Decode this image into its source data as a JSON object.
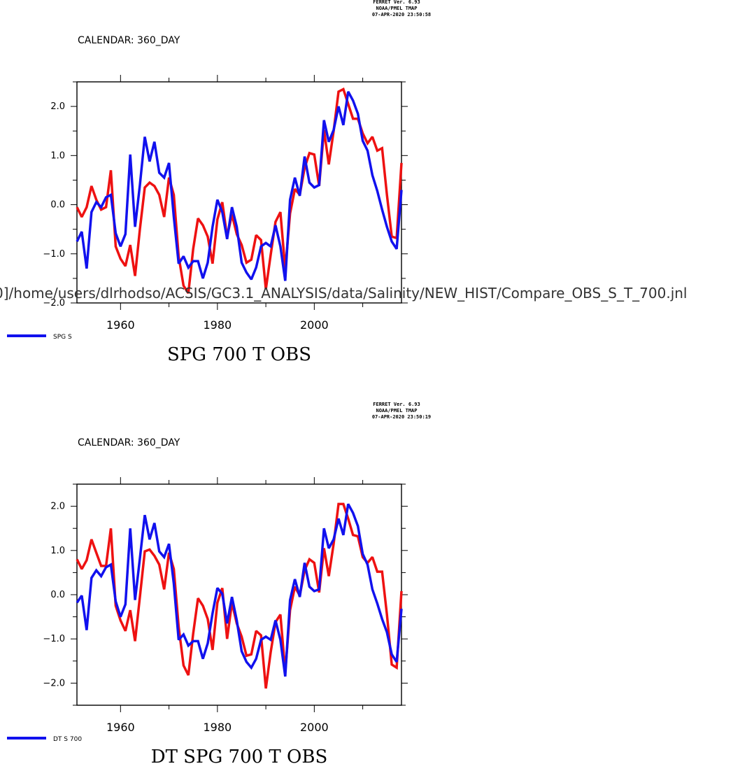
{
  "header": {
    "line1": "FERRET Ver. 6.93",
    "line2": "NOAA/PMEL TMAP",
    "line3_top": "07-APR-2020 23:50:58",
    "line3_bottom": "07-APR-2020 23:50:19"
  },
  "journal_path": "0]/home/users/dlrhodso/ACSIS/GC3.1_ANALYSIS/data/Salinity/NEW_HIST/Compare_OBS_S_T_700.jnl",
  "colors": {
    "red_series": "#ee1111",
    "blue_series": "#1111ee",
    "axis": "#000000"
  },
  "chart_data": [
    {
      "type": "line",
      "calendar_label": "CALENDAR: 360_DAY",
      "title": "SPG 700 T OBS",
      "legend": [
        "SPG S"
      ],
      "legend_placement": "bottom-left",
      "grid": false,
      "xlim": [
        1951,
        2018
      ],
      "ylim": [
        -2.0,
        2.5
      ],
      "xticks": [
        1960,
        1980,
        2000
      ],
      "xtick_labels": [
        "1960",
        "1980",
        "2000"
      ],
      "yticks": [
        -2.0,
        -1.0,
        0.0,
        1.0,
        2.0
      ],
      "ytick_labels": [
        "−2.0",
        "−1.0",
        "0.0",
        "1.0",
        "2.0"
      ],
      "x": [
        1951,
        1952,
        1953,
        1954,
        1955,
        1956,
        1957,
        1958,
        1959,
        1960,
        1961,
        1962,
        1963,
        1964,
        1965,
        1966,
        1967,
        1968,
        1969,
        1970,
        1971,
        1972,
        1973,
        1974,
        1975,
        1976,
        1977,
        1978,
        1979,
        1980,
        1981,
        1982,
        1983,
        1984,
        1985,
        1986,
        1987,
        1988,
        1989,
        1990,
        1991,
        1992,
        1993,
        1994,
        1995,
        1996,
        1997,
        1998,
        1999,
        2000,
        2001,
        2002,
        2003,
        2004,
        2005,
        2006,
        2007,
        2008,
        2009,
        2010,
        2011,
        2012,
        2013,
        2014,
        2015,
        2016,
        2017,
        2018
      ],
      "series": [
        {
          "color": "red",
          "values": [
            -0.05,
            -0.25,
            -0.05,
            0.38,
            0.1,
            -0.1,
            -0.05,
            0.7,
            -0.85,
            -1.1,
            -1.25,
            -0.82,
            -1.45,
            -0.5,
            0.35,
            0.45,
            0.38,
            0.2,
            -0.25,
            0.55,
            0.2,
            -1.05,
            -1.65,
            -1.8,
            -0.9,
            -0.28,
            -0.42,
            -0.65,
            -1.2,
            -0.3,
            0.05,
            -0.65,
            -0.2,
            -0.6,
            -0.82,
            -1.18,
            -1.12,
            -0.62,
            -0.72,
            -1.72,
            -1.02,
            -0.35,
            -0.15,
            -1.32,
            -0.18,
            0.32,
            0.2,
            0.75,
            1.05,
            1.02,
            0.38,
            1.52,
            0.82,
            1.5,
            2.3,
            2.35,
            2.05,
            1.75,
            1.75,
            1.45,
            1.25,
            1.38,
            1.1,
            1.15,
            0.2,
            -0.65,
            -0.68,
            0.85
          ]
        },
        {
          "color": "blue",
          "name": "SPG S",
          "values": [
            -0.75,
            -0.55,
            -1.3,
            -0.15,
            0.05,
            -0.05,
            0.15,
            0.2,
            -0.58,
            -0.85,
            -0.6,
            1.02,
            -0.45,
            0.4,
            1.38,
            0.88,
            1.28,
            0.65,
            0.55,
            0.85,
            -0.25,
            -1.2,
            -1.05,
            -1.28,
            -1.15,
            -1.15,
            -1.5,
            -1.18,
            -0.45,
            0.1,
            -0.15,
            -0.7,
            -0.05,
            -0.45,
            -1.18,
            -1.38,
            -1.52,
            -1.28,
            -0.85,
            -0.78,
            -0.85,
            -0.42,
            -0.85,
            -1.55,
            0.1,
            0.55,
            0.18,
            0.98,
            0.45,
            0.35,
            0.4,
            1.72,
            1.28,
            1.52,
            2.0,
            1.62,
            2.3,
            2.12,
            1.85,
            1.3,
            1.1,
            0.6,
            0.28,
            -0.1,
            -0.45,
            -0.75,
            -0.9,
            0.3
          ]
        }
      ]
    },
    {
      "type": "line",
      "calendar_label": "CALENDAR: 360_DAY",
      "title": "DT SPG 700 T OBS",
      "legend": [
        "DT S 700"
      ],
      "legend_placement": "bottom-left",
      "grid": false,
      "xlim": [
        1951,
        2018
      ],
      "ylim": [
        -2.5,
        2.5
      ],
      "xticks": [
        1960,
        1980,
        2000
      ],
      "xtick_labels": [
        "1960",
        "1980",
        "2000"
      ],
      "yticks": [
        -2.0,
        -1.0,
        0.0,
        1.0,
        2.0
      ],
      "ytick_labels": [
        "−2.0",
        "−1.0",
        "0.0",
        "1.0",
        "2.0"
      ],
      "x": [
        1951,
        1952,
        1953,
        1954,
        1955,
        1956,
        1957,
        1958,
        1959,
        1960,
        1961,
        1962,
        1963,
        1964,
        1965,
        1966,
        1967,
        1968,
        1969,
        1970,
        1971,
        1972,
        1973,
        1974,
        1975,
        1976,
        1977,
        1978,
        1979,
        1980,
        1981,
        1982,
        1983,
        1984,
        1985,
        1986,
        1987,
        1988,
        1989,
        1990,
        1991,
        1992,
        1993,
        1994,
        1995,
        1996,
        1997,
        1998,
        1999,
        2000,
        2001,
        2002,
        2003,
        2004,
        2005,
        2006,
        2007,
        2008,
        2009,
        2010,
        2011,
        2012,
        2013,
        2014,
        2015,
        2016,
        2017,
        2018
      ],
      "series": [
        {
          "color": "red",
          "values": [
            0.8,
            0.58,
            0.78,
            1.25,
            0.95,
            0.65,
            0.65,
            1.5,
            -0.25,
            -0.58,
            -0.82,
            -0.35,
            -1.05,
            -0.05,
            0.98,
            1.02,
            0.88,
            0.68,
            0.12,
            0.95,
            0.58,
            -0.72,
            -1.6,
            -1.82,
            -0.88,
            -0.08,
            -0.25,
            -0.55,
            -1.25,
            -0.18,
            0.15,
            -1.0,
            -0.18,
            -0.65,
            -0.95,
            -1.38,
            -1.35,
            -0.82,
            -0.92,
            -2.12,
            -1.3,
            -0.62,
            -0.45,
            -1.75,
            -0.35,
            0.18,
            -0.02,
            0.55,
            0.8,
            0.72,
            0.05,
            1.05,
            0.42,
            1.15,
            2.05,
            2.05,
            1.72,
            1.35,
            1.32,
            0.85,
            0.72,
            0.85,
            0.52,
            0.52,
            -0.45,
            -1.58,
            -1.65,
            0.08
          ]
        },
        {
          "color": "blue",
          "name": "DT S 700",
          "values": [
            -0.18,
            -0.02,
            -0.8,
            0.38,
            0.55,
            0.42,
            0.62,
            0.68,
            -0.15,
            -0.5,
            -0.22,
            1.5,
            -0.12,
            0.82,
            1.8,
            1.25,
            1.62,
            0.98,
            0.85,
            1.15,
            0.25,
            -1.02,
            -0.9,
            -1.15,
            -1.05,
            -1.05,
            -1.45,
            -1.1,
            -0.42,
            0.15,
            0.02,
            -0.65,
            -0.05,
            -0.58,
            -1.28,
            -1.52,
            -1.65,
            -1.45,
            -1.02,
            -0.95,
            -1.02,
            -0.58,
            -1.02,
            -1.85,
            -0.12,
            0.35,
            -0.05,
            0.72,
            0.18,
            0.08,
            0.12,
            1.5,
            1.05,
            1.25,
            1.72,
            1.35,
            2.05,
            1.85,
            1.55,
            0.92,
            0.68,
            0.12,
            -0.2,
            -0.55,
            -0.85,
            -1.35,
            -1.52,
            -0.32
          ]
        }
      ]
    }
  ]
}
